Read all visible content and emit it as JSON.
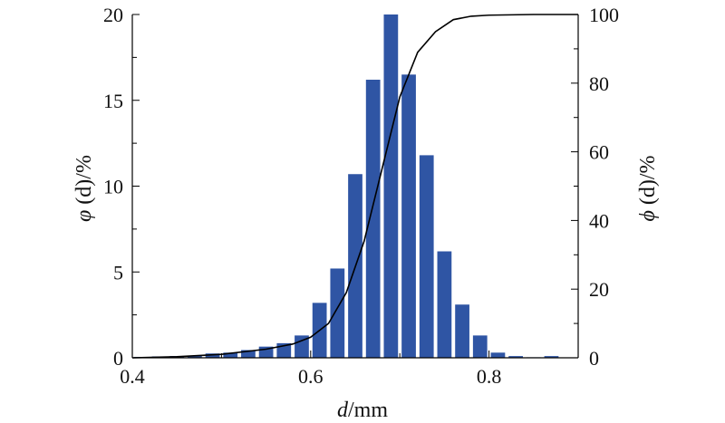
{
  "chart_data": {
    "type": "bar",
    "xlabel_var": "d",
    "xlabel_unit": "/mm",
    "ylabel_left_sym": "φ",
    "ylabel_left_rest": " (d)/%",
    "ylabel_right_sym": "ϕ",
    "ylabel_right_rest": " (d)/%",
    "xlim": [
      0.4,
      0.9
    ],
    "ylim_left": [
      0,
      20
    ],
    "ylim_right": [
      0,
      100
    ],
    "x_ticks": [
      0.4,
      0.6,
      0.8
    ],
    "x_tick_labels": [
      "0.4",
      "0.6",
      "0.8"
    ],
    "y_left_ticks": [
      0,
      5,
      10,
      15,
      20
    ],
    "y_left_tick_labels": [
      "0",
      "5",
      "10",
      "15",
      "20"
    ],
    "y_right_ticks": [
      0,
      20,
      40,
      60,
      80,
      100
    ],
    "y_right_tick_labels": [
      "0",
      "20",
      "40",
      "60",
      "80",
      "100"
    ],
    "bar_color": "#2f55a4",
    "line_color": "#000000",
    "bar_width": 0.016,
    "bars": {
      "x": [
        0.41,
        0.43,
        0.45,
        0.47,
        0.49,
        0.51,
        0.53,
        0.55,
        0.57,
        0.59,
        0.61,
        0.63,
        0.65,
        0.67,
        0.69,
        0.71,
        0.73,
        0.75,
        0.77,
        0.79,
        0.81,
        0.83,
        0.85,
        0.87
      ],
      "values": [
        0.05,
        0.08,
        0.1,
        0.12,
        0.25,
        0.3,
        0.45,
        0.65,
        0.85,
        1.3,
        3.2,
        5.2,
        10.7,
        16.2,
        20.0,
        16.5,
        11.8,
        6.2,
        3.1,
        1.3,
        0.3,
        0.1,
        0.03,
        0.1
      ]
    },
    "cumulative": {
      "x": [
        0.4,
        0.45,
        0.5,
        0.55,
        0.58,
        0.6,
        0.62,
        0.64,
        0.66,
        0.68,
        0.7,
        0.72,
        0.74,
        0.76,
        0.78,
        0.8,
        0.85,
        0.9
      ],
      "values": [
        0,
        0.3,
        1,
        2.5,
        4,
        6,
        10,
        19,
        34,
        55,
        76,
        89,
        95,
        98.5,
        99.5,
        99.8,
        100,
        100
      ]
    }
  }
}
